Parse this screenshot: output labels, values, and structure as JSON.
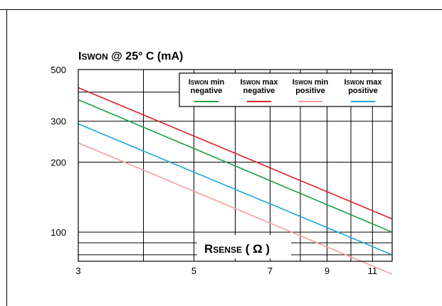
{
  "chart_data": {
    "type": "line",
    "title": {
      "main": "I",
      "sub": "SWON",
      "rest": " @ 25° C (mA)"
    },
    "xlabel": {
      "main": "R",
      "sub": "SENSE",
      "unit": " ( Ω )"
    },
    "x_scale": "log",
    "y_scale": "log",
    "xlim": [
      3,
      12
    ],
    "ylim": [
      75,
      500
    ],
    "x_ticks": [
      3,
      5,
      7,
      9,
      11
    ],
    "x_ticks_labels": [
      "3",
      "5",
      "7",
      "9",
      "11"
    ],
    "x_grid": [
      4,
      5,
      6,
      7,
      8,
      9,
      10,
      11
    ],
    "y_ticks": [
      100,
      200,
      300,
      500
    ],
    "y_ticks_labels": [
      "100",
      "200",
      "300",
      "500"
    ],
    "y_grid": [
      80,
      90,
      100,
      200,
      300,
      400,
      500
    ],
    "grid": true,
    "legend_position": "top-right",
    "series": [
      {
        "name_main": "I",
        "name_sub": "SWON",
        "name_rest": " min",
        "name_line2": "negative",
        "color": "#1a9e4a",
        "x": [
          3,
          12
        ],
        "y": [
          371,
          100
        ]
      },
      {
        "name_main": "I",
        "name_sub": "SWON",
        "name_rest": " max",
        "name_line2": "negative",
        "color": "#d9202a",
        "x": [
          3,
          12
        ],
        "y": [
          418,
          114
        ]
      },
      {
        "name_main": "I",
        "name_sub": "SWON",
        "name_rest": " min",
        "name_line2": "positive",
        "color": "#f0a0a0",
        "x": [
          3,
          12
        ],
        "y": [
          242,
          66
        ]
      },
      {
        "name_main": "I",
        "name_sub": "SWON",
        "name_rest": " max",
        "name_line2": "positive",
        "color": "#1aa8e0",
        "x": [
          3,
          12
        ],
        "y": [
          292,
          80
        ]
      }
    ]
  }
}
